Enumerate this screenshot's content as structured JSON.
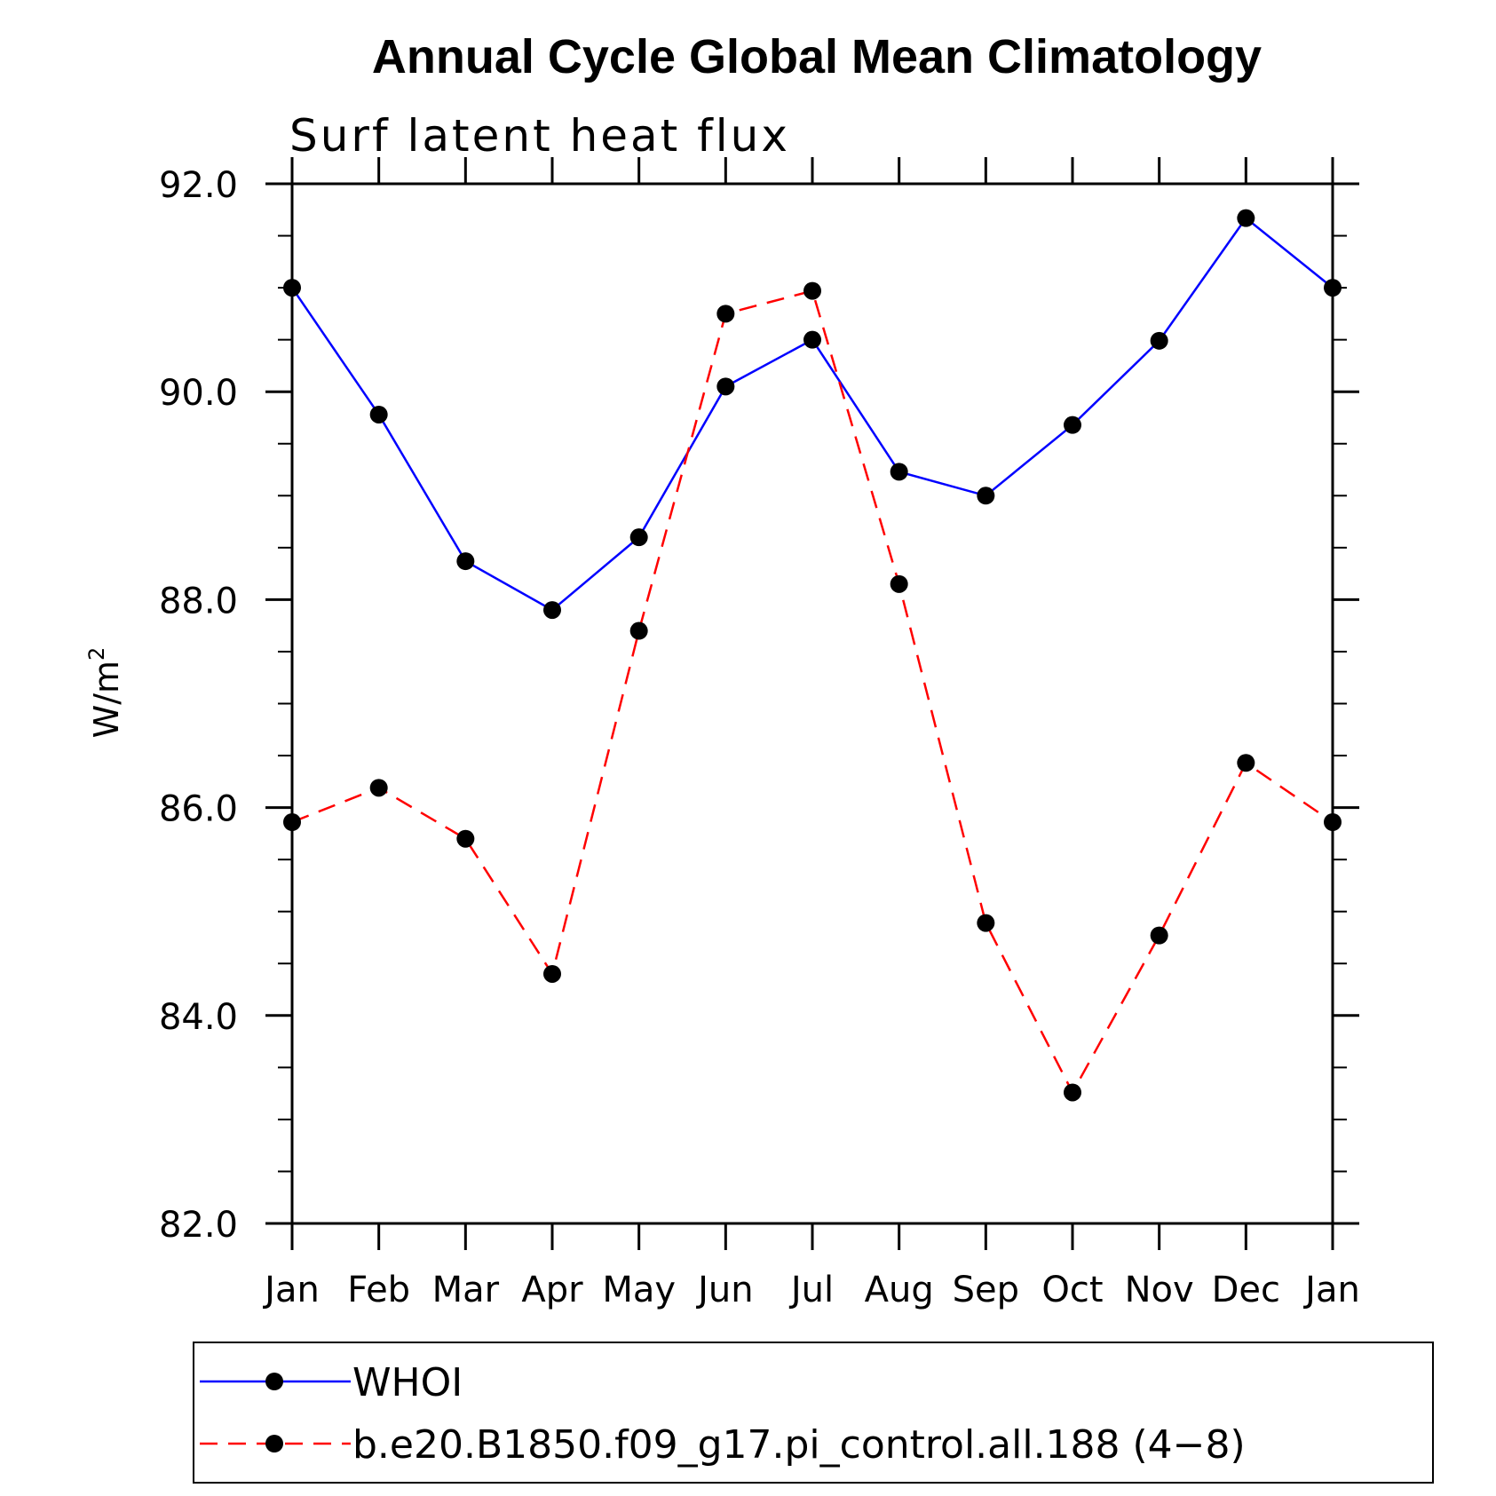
{
  "chart_data": {
    "type": "line",
    "title": "Annual Cycle Global Mean Climatology",
    "subtitle": "Surf latent heat flux",
    "ylabel": "W/m",
    "ylabel_sup": "2",
    "ylim": [
      82,
      92
    ],
    "yticks": [
      "82.0",
      "84.0",
      "86.0",
      "88.0",
      "90.0",
      "92.0"
    ],
    "ytick_values": [
      82,
      84,
      86,
      88,
      90,
      92
    ],
    "categories": [
      "Jan",
      "Feb",
      "Mar",
      "Apr",
      "May",
      "Jun",
      "Jul",
      "Aug",
      "Sep",
      "Oct",
      "Nov",
      "Dec",
      "Jan"
    ],
    "series": [
      {
        "name": "WHOI",
        "color": "#0000ff",
        "dash": "solid",
        "values": [
          91.0,
          89.78,
          88.37,
          87.9,
          88.6,
          90.05,
          90.5,
          89.23,
          89.0,
          89.68,
          90.49,
          91.67,
          91.0
        ]
      },
      {
        "name": "b.e20.B1850.f09_g17.pi_control.all.188 (4−8)",
        "color": "#ff0000",
        "dash": "dashed",
        "values": [
          85.86,
          86.19,
          85.7,
          84.4,
          87.7,
          90.75,
          90.97,
          88.15,
          84.89,
          83.26,
          84.77,
          86.43,
          85.86
        ]
      }
    ],
    "legend_position": "bottom",
    "grid": false
  }
}
